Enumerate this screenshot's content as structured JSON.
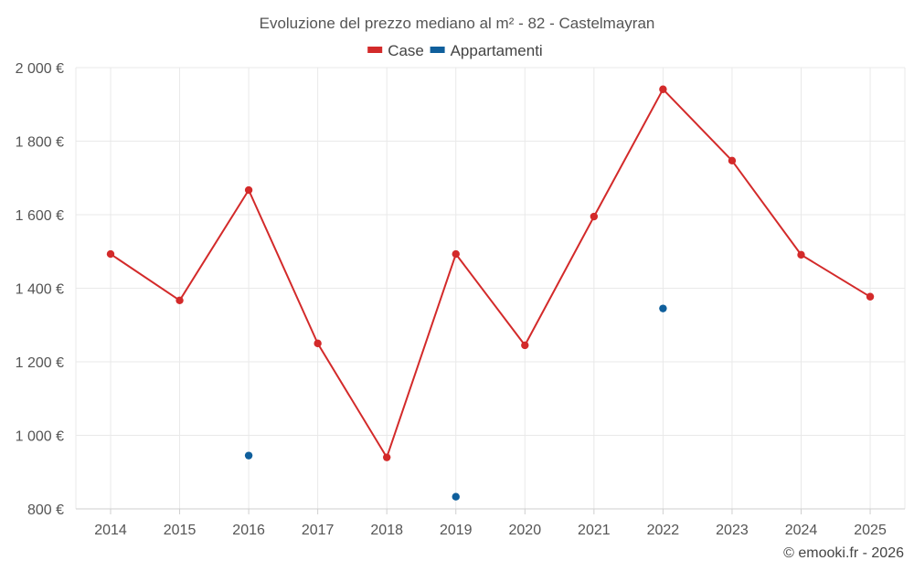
{
  "chart_data": {
    "type": "line",
    "title": "Evoluzione del prezzo mediano al m² - 82 - Castelmayran",
    "categories": [
      "2014",
      "2015",
      "2016",
      "2017",
      "2018",
      "2019",
      "2020",
      "2021",
      "2022",
      "2023",
      "2024",
      "2025"
    ],
    "y_ticks": [
      800,
      1000,
      1200,
      1400,
      1600,
      1800,
      2000
    ],
    "y_tick_labels": [
      "800 €",
      "1 000 €",
      "1 200 €",
      "1 400 €",
      "1 600 €",
      "1 800 €",
      "2 000 €"
    ],
    "ylim": [
      800,
      2000
    ],
    "grid": true,
    "legend_position": "top-center",
    "series": [
      {
        "name": "Case",
        "color": "#d32a2a",
        "style": "line-with-markers",
        "values": [
          1493,
          1367,
          1667,
          1250,
          940,
          1493,
          1245,
          1595,
          1941,
          1747,
          1491,
          1377
        ]
      },
      {
        "name": "Appartamenti",
        "color": "#0f5f9c",
        "style": "markers-only",
        "values": [
          null,
          null,
          945,
          null,
          null,
          833,
          null,
          null,
          1345,
          null,
          null,
          null
        ]
      }
    ],
    "credit": "© emooki.fr - 2026"
  }
}
